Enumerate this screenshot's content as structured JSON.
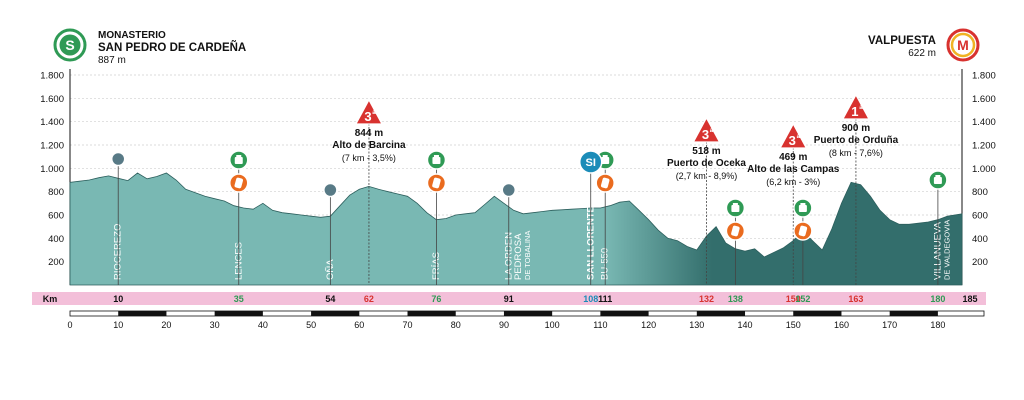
{
  "header": {
    "start": {
      "line1": "MONASTERIO",
      "line2": "SAN PEDRO DE CARDEÑA",
      "altitude": "887 m",
      "badge": "S"
    },
    "finish": {
      "line1": "VALPUESTA",
      "altitude": "622 m",
      "badge": "M"
    }
  },
  "colors": {
    "profile_light": "#79b8b3",
    "profile_dark": "#336e6c",
    "km_band": "#f3bfd9",
    "sprint": "#2f9a55",
    "food": "#ea6b1f",
    "climb": "#d8322f",
    "flag": "#1b8cb8",
    "checkpoint": "#587a86"
  },
  "chart_data": {
    "type": "area",
    "title": "",
    "xlabel": "Km",
    "ylabel": "",
    "xlim": [
      0,
      185
    ],
    "ylim": [
      0,
      1800
    ],
    "yticks": [
      "1.800",
      "1.600",
      "1.400",
      "1.200",
      "1.000",
      "800",
      "600",
      "400",
      "200"
    ],
    "ytick_values": [
      1800,
      1600,
      1400,
      1200,
      1000,
      800,
      600,
      400,
      200
    ],
    "xticks": [
      0,
      10,
      20,
      30,
      40,
      50,
      60,
      70,
      80,
      90,
      100,
      110,
      120,
      130,
      140,
      150,
      160,
      170,
      180
    ],
    "profile": {
      "x": [
        0,
        2,
        4,
        6,
        8,
        10,
        12,
        14,
        16,
        18,
        20,
        22,
        24,
        26,
        28,
        30,
        32,
        34,
        36,
        38,
        40,
        42,
        44,
        46,
        48,
        50,
        52,
        54,
        56,
        58,
        60,
        62,
        64,
        66,
        68,
        70,
        72,
        74,
        76,
        78,
        80,
        82,
        84,
        86,
        88,
        90,
        92,
        94,
        96,
        98,
        100,
        102,
        104,
        106,
        108,
        110,
        112,
        114,
        116,
        118,
        120,
        122,
        124,
        126,
        128,
        130,
        132,
        134,
        136,
        138,
        140,
        142,
        144,
        146,
        148,
        150,
        152,
        154,
        156,
        158,
        160,
        162,
        164,
        166,
        168,
        170,
        172,
        174,
        176,
        178,
        180,
        182,
        185
      ],
      "y": [
        880,
        890,
        900,
        920,
        935,
        915,
        895,
        960,
        910,
        930,
        960,
        900,
        820,
        790,
        760,
        740,
        720,
        680,
        660,
        650,
        700,
        640,
        620,
        610,
        600,
        590,
        580,
        590,
        680,
        770,
        820,
        845,
        820,
        800,
        780,
        760,
        700,
        620,
        560,
        570,
        600,
        610,
        620,
        690,
        760,
        700,
        640,
        610,
        620,
        630,
        640,
        645,
        650,
        655,
        660,
        660,
        680,
        710,
        720,
        640,
        560,
        470,
        400,
        380,
        330,
        300,
        420,
        500,
        360,
        310,
        290,
        310,
        240,
        280,
        320,
        380,
        460,
        380,
        300,
        480,
        700,
        880,
        860,
        760,
        640,
        560,
        520,
        520,
        530,
        540,
        560,
        590,
        610
      ]
    },
    "km_markers": [
      {
        "km": 10,
        "label": "10",
        "color": "#111111"
      },
      {
        "km": 35,
        "label": "35",
        "color": "#2f9a55"
      },
      {
        "km": 54,
        "label": "54",
        "color": "#111111"
      },
      {
        "km": 62,
        "label": "62",
        "color": "#d8322f"
      },
      {
        "km": 76,
        "label": "76",
        "color": "#2f9a55"
      },
      {
        "km": 91,
        "label": "91",
        "color": "#111111"
      },
      {
        "km": 108,
        "label": "108",
        "color": "#1b8cb8"
      },
      {
        "km": 111,
        "label": "111",
        "color": "#111111"
      },
      {
        "km": 132,
        "label": "132",
        "color": "#d8322f"
      },
      {
        "km": 138,
        "label": "138",
        "color": "#2f9a55"
      },
      {
        "km": 150,
        "label": "150",
        "color": "#d8322f"
      },
      {
        "km": 152,
        "label": "152",
        "color": "#2f9a55"
      },
      {
        "km": 163,
        "label": "163",
        "color": "#d8322f"
      },
      {
        "km": 180,
        "label": "180",
        "color": "#2f9a55"
      },
      {
        "km": 185,
        "label": "185",
        "color": "#111111"
      }
    ],
    "places": [
      {
        "km": 10,
        "name": "RIOCEREZO"
      },
      {
        "km": 35,
        "name": "LENCES"
      },
      {
        "km": 54,
        "name": "OÑA"
      },
      {
        "km": 76,
        "name": "FRÍAS"
      },
      {
        "km": 91,
        "name": "LA ORDEN"
      },
      {
        "km": 93,
        "name": "PEDROSA"
      },
      {
        "km": 95,
        "name": "DE TOBALINA",
        "small": true
      },
      {
        "km": 108,
        "name": "SAN LLORENTE",
        "bold": true
      },
      {
        "km": 111,
        "name": "BU-550"
      },
      {
        "km": 180,
        "name": "VILLANUEVA"
      },
      {
        "km": 182,
        "name": "DE VALDEGOVIA",
        "small": true
      }
    ],
    "climbs": [
      {
        "km": 62,
        "cat": "3",
        "sup": "a",
        "alt": "844 m",
        "name": "Alto de Barcina",
        "detail": "(7 km - 3,5%)"
      },
      {
        "km": 132,
        "cat": "3",
        "sup": "a",
        "alt": "518 m",
        "name": "Puerto de Oceka",
        "detail": "(2,7 km - 8,9%)"
      },
      {
        "km": 150,
        "cat": "3",
        "sup": "a",
        "alt": "469 m",
        "name": "Alto de las Campas",
        "detail": "(6,2 km - 3%)"
      },
      {
        "km": 163,
        "cat": "1",
        "sup": "a",
        "alt": "900 m",
        "name": "Puerto de Orduña",
        "detail": "(8 km - 7,6%)"
      }
    ],
    "sprints": [
      {
        "km": 35,
        "food": true
      },
      {
        "km": 76,
        "food": true
      },
      {
        "km": 111,
        "food": true
      },
      {
        "km": 138,
        "food": true
      },
      {
        "km": 152,
        "food": true
      },
      {
        "km": 180,
        "food": false
      }
    ],
    "flag": {
      "km": 108,
      "label": "SI"
    },
    "checkpoints": [
      {
        "km": 10
      },
      {
        "km": 54
      },
      {
        "km": 91
      }
    ]
  }
}
